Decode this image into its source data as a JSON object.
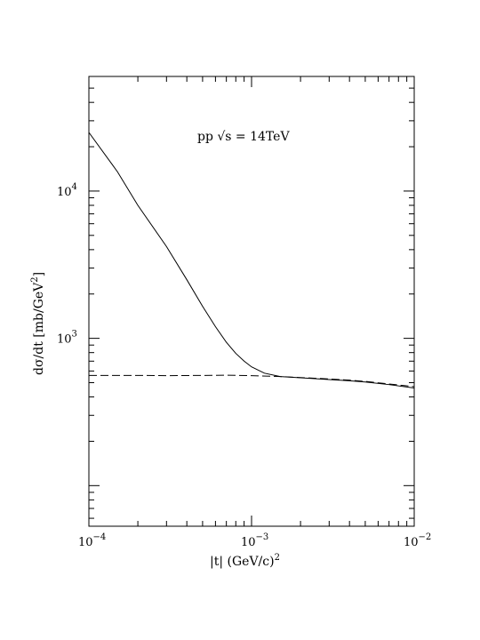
{
  "chart_data": {
    "type": "line",
    "title": "",
    "annotation": "pp √s = 14TeV",
    "xlabel": "|t| (GeV/c)",
    "xlabel_exp": "2",
    "ylabel": "dσ/dt [mb/GeV",
    "ylabel_exp": "2",
    "ylabel_close": "]",
    "xscale": "log",
    "yscale": "log",
    "xlim": [
      0.0001,
      0.01
    ],
    "ylim": [
      53,
      60000
    ],
    "grid": false,
    "x_ticks": [
      {
        "base": "10",
        "exp": "−4",
        "value": 0.0001
      },
      {
        "base": "10",
        "exp": "−3",
        "value": 0.001
      },
      {
        "base": "10",
        "exp": "−2",
        "value": 0.01
      }
    ],
    "y_ticks": [
      {
        "base": "10",
        "exp": "3",
        "value": 1000
      },
      {
        "base": "10",
        "exp": "4",
        "value": 10000
      }
    ],
    "series": [
      {
        "style": "solid",
        "x": [
          0.0001,
          0.00015,
          0.0002,
          0.0003,
          0.0004,
          0.0005,
          0.0006,
          0.0007,
          0.0008,
          0.0009,
          0.001,
          0.0012,
          0.0015,
          0.002,
          0.003,
          0.004,
          0.005,
          0.007,
          0.01
        ],
        "y": [
          25000,
          13500,
          8000,
          4200,
          2500,
          1650,
          1200,
          940,
          790,
          700,
          640,
          580,
          550,
          540,
          525,
          515,
          505,
          485,
          460
        ]
      },
      {
        "style": "dashed",
        "x": [
          0.0001,
          0.0002,
          0.0003,
          0.0005,
          0.0007,
          0.001,
          0.0015,
          0.002,
          0.003,
          0.004,
          0.005,
          0.007,
          0.01
        ],
        "y": [
          560,
          560,
          558,
          560,
          562,
          558,
          550,
          542,
          530,
          520,
          510,
          490,
          470
        ]
      }
    ]
  }
}
